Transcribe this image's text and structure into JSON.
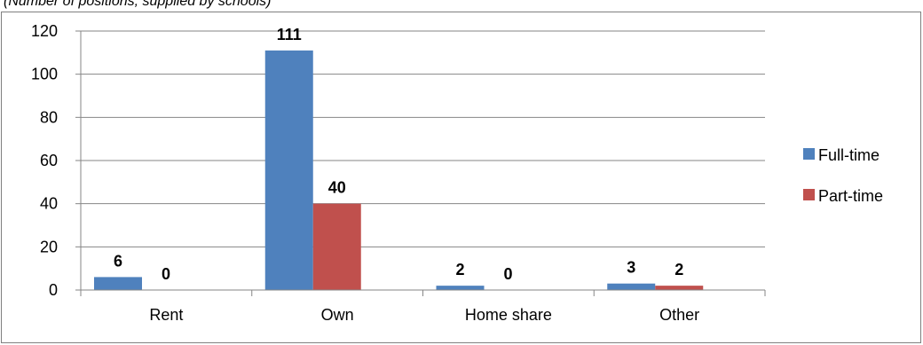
{
  "caption": "(Number of positions, supplied by schools)",
  "chart_data": {
    "type": "bar",
    "categories": [
      "Rent",
      "Own",
      "Home share",
      "Other"
    ],
    "series": [
      {
        "name": "Full-time",
        "values": [
          6,
          111,
          2,
          3
        ],
        "color": "#4f81bd"
      },
      {
        "name": "Part-time",
        "values": [
          0,
          40,
          0,
          2
        ],
        "color": "#c0504d"
      }
    ],
    "ylim": [
      0,
      120
    ],
    "yticks": [
      0,
      20,
      40,
      60,
      80,
      100,
      120
    ],
    "grid": true,
    "legend_position": "right",
    "title": "",
    "xlabel": "",
    "ylabel": ""
  }
}
